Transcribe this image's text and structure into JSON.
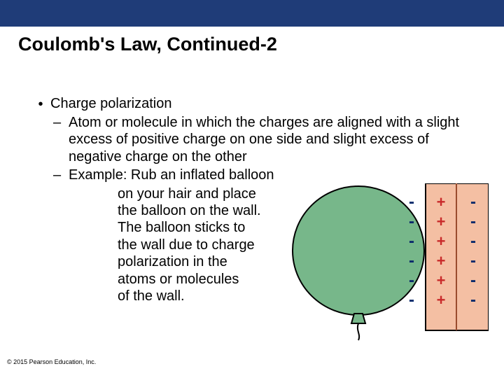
{
  "header": {
    "bar_color": "#1f3c78",
    "title": "Coulomb's Law, Continued-2"
  },
  "content": {
    "bullet_label": "Charge polarization",
    "sub1": "Atom or molecule in which the charges are aligned with a slight excess of positive charge on one side and slight excess of negative charge on the other",
    "sub2_lead": "Example: Rub an inflated balloon",
    "example_lines": [
      "on your hair and place",
      "the balloon on the wall.",
      "The balloon sticks to",
      "the wall due to charge",
      "polarization in the",
      "atoms or molecules",
      "of the wall."
    ]
  },
  "figure": {
    "balloon_fill": "#77b78a",
    "balloon_stroke": "#000000",
    "wall_fill": "#f4bfa3",
    "wall_stroke": "#000000",
    "minus_color": "#0a2a6b",
    "plus_color": "#c92a2a",
    "divider_color": "#9a4c2e",
    "minus_glyph": "-",
    "plus_glyph": "+"
  },
  "footer": {
    "copyright": "© 2015 Pearson Education, Inc."
  }
}
